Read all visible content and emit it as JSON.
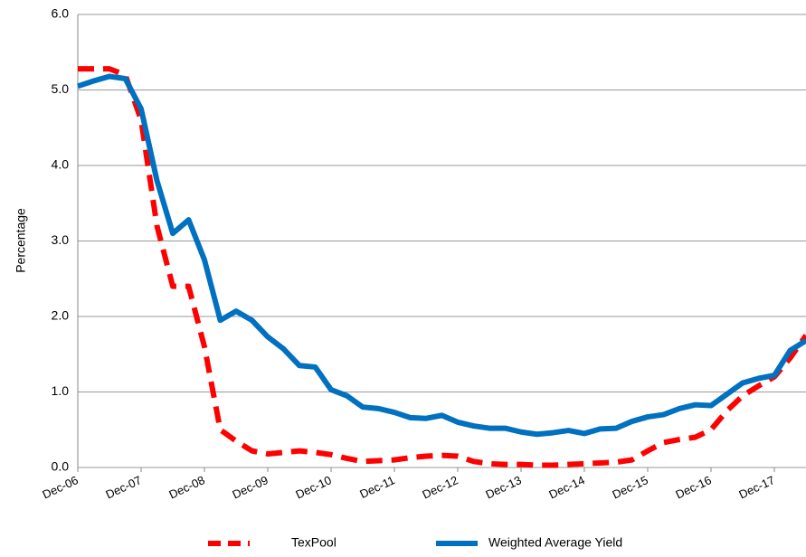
{
  "chart_data": {
    "type": "line",
    "y_label": "Percentage",
    "categories": [
      "Dec-06",
      null,
      null,
      null,
      "Dec-07",
      null,
      null,
      null,
      "Dec-08",
      null,
      null,
      null,
      "Dec-09",
      null,
      null,
      null,
      "Dec-10",
      null,
      null,
      null,
      "Dec-11",
      null,
      null,
      null,
      "Dec-12",
      null,
      null,
      null,
      "Dec-13",
      null,
      null,
      null,
      "Dec-14",
      null,
      null,
      null,
      "Dec-15",
      null,
      null,
      null,
      "Dec-16",
      null,
      null,
      null,
      "Dec-17",
      null,
      null
    ],
    "series": [
      {
        "name": "TexPool",
        "color": "#ff0000",
        "dashed": true,
        "values": [
          5.28,
          5.28,
          5.28,
          5.2,
          4.6,
          3.2,
          2.4,
          2.4,
          1.6,
          0.5,
          0.35,
          0.22,
          0.18,
          0.2,
          0.22,
          0.2,
          0.17,
          0.12,
          0.08,
          0.09,
          0.1,
          0.13,
          0.15,
          0.16,
          0.15,
          0.08,
          0.05,
          0.04,
          0.04,
          0.03,
          0.03,
          0.04,
          0.05,
          0.06,
          0.07,
          0.1,
          0.22,
          0.33,
          0.37,
          0.4,
          0.5,
          0.75,
          0.95,
          1.08,
          1.2,
          1.45,
          1.75
        ]
      },
      {
        "name": "Weighted Average Yield",
        "color": "#0070c0",
        "dashed": false,
        "values": [
          5.05,
          5.12,
          5.18,
          5.15,
          4.75,
          3.8,
          3.1,
          3.28,
          2.75,
          1.95,
          2.07,
          1.95,
          1.73,
          1.57,
          1.35,
          1.33,
          1.03,
          0.95,
          0.8,
          0.78,
          0.73,
          0.66,
          0.65,
          0.69,
          0.6,
          0.55,
          0.52,
          0.52,
          0.47,
          0.44,
          0.46,
          0.49,
          0.45,
          0.51,
          0.52,
          0.61,
          0.67,
          0.7,
          0.78,
          0.83,
          0.82,
          0.97,
          1.12,
          1.18,
          1.22,
          1.55,
          1.68
        ]
      }
    ],
    "ylim": [
      0,
      6
    ],
    "yticks": [
      {
        "value": 0,
        "label": "0.0"
      },
      {
        "value": 1,
        "label": "1.0"
      },
      {
        "value": 2,
        "label": "2.0"
      },
      {
        "value": 3,
        "label": "3.0"
      },
      {
        "value": 4,
        "label": "4.0"
      },
      {
        "value": 5,
        "label": "5.0"
      },
      {
        "value": 6,
        "label": "6.0"
      }
    ],
    "grid": true
  }
}
